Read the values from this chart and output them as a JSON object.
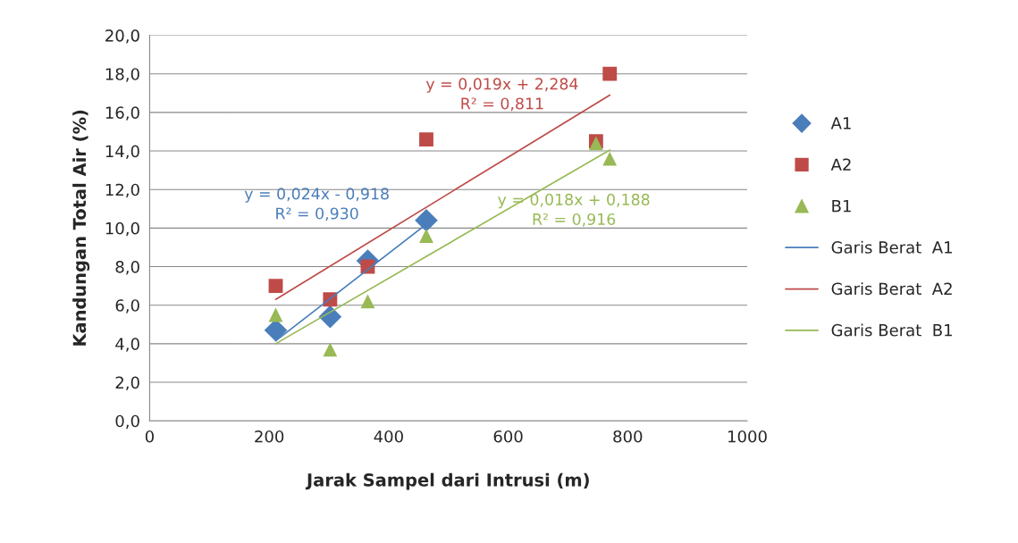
{
  "chart_data": {
    "type": "scatter",
    "xlabel": "Jarak Sampel dari Intrusi (m)",
    "ylabel": "Kandungan Total Air (%)",
    "xlim": [
      0,
      1000
    ],
    "xticks": [
      0,
      200,
      400,
      600,
      800,
      1000
    ],
    "ylim": [
      0,
      20
    ],
    "yticks": [
      {
        "value": 0,
        "label": "0,0"
      },
      {
        "value": 2,
        "label": "2,0"
      },
      {
        "value": 4,
        "label": "4,0"
      },
      {
        "value": 6,
        "label": "6,0"
      },
      {
        "value": 8,
        "label": "8,0"
      },
      {
        "value": 10,
        "label": "10,0"
      },
      {
        "value": 12,
        "label": "12,0"
      },
      {
        "value": 14,
        "label": "14,0"
      },
      {
        "value": 16,
        "label": "16,0"
      },
      {
        "value": 18,
        "label": "18,0"
      },
      {
        "value": 20,
        "label": "20,0"
      }
    ],
    "grid": "y",
    "legend": "right",
    "series": [
      {
        "name": "A1",
        "marker": "diamond",
        "color": "#4a7ebb",
        "x": [
          211,
          302,
          365,
          463
        ],
        "values": [
          4.7,
          5.4,
          8.3,
          10.4
        ]
      },
      {
        "name": "A2",
        "marker": "square",
        "color": "#be4b48",
        "x": [
          211,
          302,
          365,
          463,
          747,
          770
        ],
        "values": [
          7.0,
          6.3,
          8.0,
          14.6,
          14.5,
          18.0
        ]
      },
      {
        "name": "B1",
        "marker": "triangle",
        "color": "#98b954",
        "x": [
          211,
          302,
          365,
          463,
          747,
          770
        ],
        "values": [
          5.5,
          3.7,
          6.2,
          9.6,
          14.4,
          13.6
        ]
      },
      {
        "name": "Garis Berat  A1",
        "type": "line",
        "color": "#4a7ebb",
        "x": [
          211,
          463
        ],
        "values": [
          4.15,
          10.2
        ]
      },
      {
        "name": "Garis Berat  A2",
        "type": "line",
        "color": "#be4b48",
        "x": [
          211,
          770
        ],
        "values": [
          6.3,
          16.9
        ]
      },
      {
        "name": "Garis Berat  B1",
        "type": "line",
        "color": "#98b954",
        "x": [
          211,
          770
        ],
        "values": [
          4.0,
          14.05
        ]
      }
    ],
    "annotations": [
      "y = 0,024x - 0,918\nR² = 0,930",
      "y = 0,019x + 2,284\nR² = 0,811",
      "y = 0,018x + 0,188\nR² = 0,916"
    ]
  }
}
